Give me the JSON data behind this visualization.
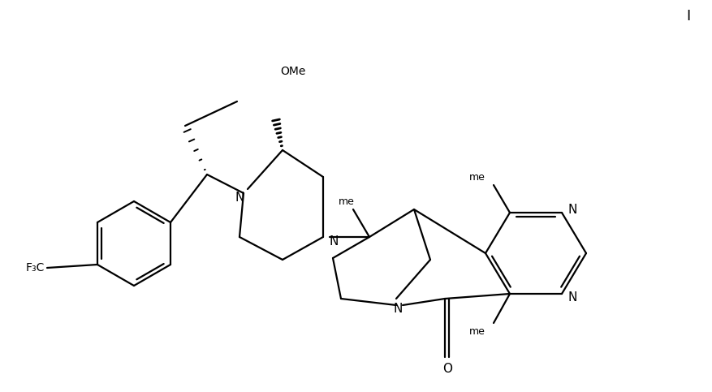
{
  "bg_color": "#ffffff",
  "line_color": "#000000",
  "text_color": "#000000",
  "fig_width": 8.78,
  "fig_height": 4.83,
  "dpi": 100,
  "lw": 1.6,
  "label_I": "I",
  "label_OMe": "OMe",
  "label_F3C": "F₃C",
  "label_N": "N",
  "label_O": "O",
  "label_me_top": "me",
  "label_me_bot": "me"
}
